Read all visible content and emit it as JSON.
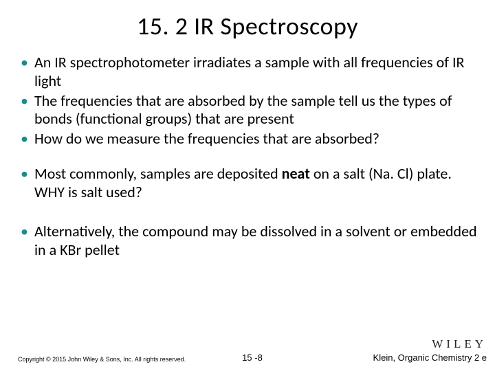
{
  "title": "15. 2 IR Spectroscopy",
  "bullets": {
    "b1": "An IR spectrophotometer irradiates a sample with all frequencies of IR light",
    "b2": "The frequencies that are absorbed by the sample tell us the types of bonds (functional groups) that are present",
    "b3": "How do we measure the frequencies that are absorbed?",
    "b4_pre": "Most commonly, samples are deposited ",
    "b4_bold": "neat",
    "b4_post": " on a salt (Na. Cl) plate.  WHY is salt used?",
    "b5": "Alternatively, the compound may be dissolved in a solvent or embedded in a KBr pellet"
  },
  "footer": {
    "copyright": "Copyright © 2015 John Wiley & Sons, Inc. All rights reserved.",
    "page": "15 -8",
    "logo": "WILEY",
    "book": "Klein, Organic Chemistry 2 e"
  },
  "colors": {
    "bullet_marker": "#1f8a8a",
    "text": "#000000",
    "background": "#ffffff"
  },
  "typography": {
    "title_fontsize": 36,
    "body_fontsize": 22,
    "footer_small_fontsize": 9,
    "footer_fontsize": 13,
    "logo_fontsize": 17
  }
}
